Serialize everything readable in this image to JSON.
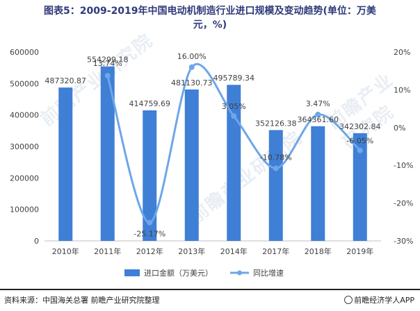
{
  "title_line1": "图表5：2009-2019年中国电动机制造行业进口规模及变动趋势(单位：万美",
  "title_line2": "元，%)",
  "footer": {
    "source": "资料来源：中国海关总署 前瞻产业研究院整理",
    "brand": "前瞻经济学人APP"
  },
  "watermark": "前瞻产业研究院",
  "colors": {
    "bar": "#3f7fd6",
    "line": "#6ea6e8",
    "axis": "#bfbfbf",
    "text": "#404040"
  },
  "chart_data": {
    "type": "bar",
    "categories": [
      "2010年",
      "2011年",
      "2012年",
      "2013年",
      "2014年",
      "2017年",
      "2018年",
      "2019年"
    ],
    "series": [
      {
        "name": "进口金额（万美元）",
        "type": "bar",
        "axis": "left",
        "values": [
          487320.87,
          554299.18,
          414759.69,
          481130.73,
          495789.34,
          352126.38,
          364361.6,
          342302.84
        ],
        "labels": [
          "487320.87",
          "554299.18",
          "414759.69",
          "481130.73",
          "495789.34",
          "352126.38",
          "364361.60",
          "342302.84"
        ]
      },
      {
        "name": "同比增速",
        "type": "line",
        "axis": "right",
        "values": [
          null,
          13.74,
          -25.17,
          16.0,
          3.05,
          -10.78,
          3.47,
          -6.05
        ],
        "labels": [
          "",
          "13.74%",
          "-25.17%",
          "16.00%",
          "3.05%",
          "-10.78%",
          "3.47%",
          "-6.05%"
        ]
      }
    ],
    "y_left": {
      "min": 0,
      "max": 600000,
      "ticks": [
        0,
        100000,
        200000,
        300000,
        400000,
        500000,
        600000
      ]
    },
    "y_right": {
      "min": -30,
      "max": 20,
      "ticks": [
        -30,
        -20,
        -10,
        0,
        10,
        20
      ],
      "suffix": "%"
    },
    "legend_position": "bottom",
    "grid": false
  }
}
